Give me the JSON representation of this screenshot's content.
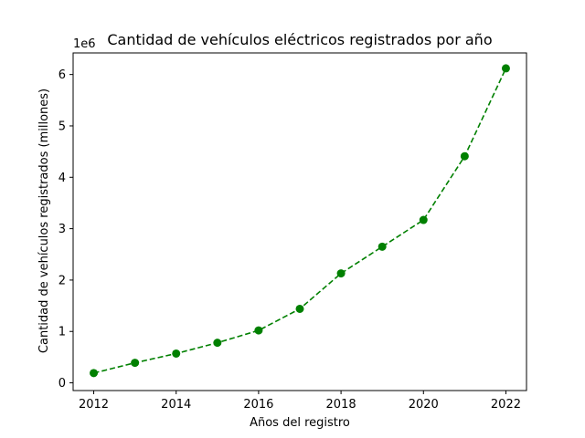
{
  "chart_data": {
    "type": "line",
    "title": "Cantidad de vehículos eléctricos registrados por año",
    "xlabel": "Años del registro",
    "ylabel": "Cantidad de vehículos registrados (millones)",
    "y_offset_label": "1e6",
    "x": [
      2012,
      2013,
      2014,
      2015,
      2016,
      2017,
      2018,
      2019,
      2020,
      2021,
      2022
    ],
    "series": [
      {
        "values": [
          190000,
          390000,
          570000,
          780000,
          1020000,
          1440000,
          2130000,
          2650000,
          3170000,
          4410000,
          6120000
        ],
        "color": "#008000",
        "line_style": "dashed",
        "marker": "circle"
      }
    ],
    "xlim": [
      2011.5,
      2022.5
    ],
    "ylim": [
      -150000,
      6420000
    ],
    "x_ticks": [
      2012,
      2014,
      2016,
      2018,
      2020,
      2022
    ],
    "y_ticks": [
      0,
      1000000,
      2000000,
      3000000,
      4000000,
      5000000,
      6000000
    ],
    "y_tick_labels": [
      "0",
      "1",
      "2",
      "3",
      "4",
      "5",
      "6"
    ],
    "grid": false,
    "legend": "none"
  }
}
